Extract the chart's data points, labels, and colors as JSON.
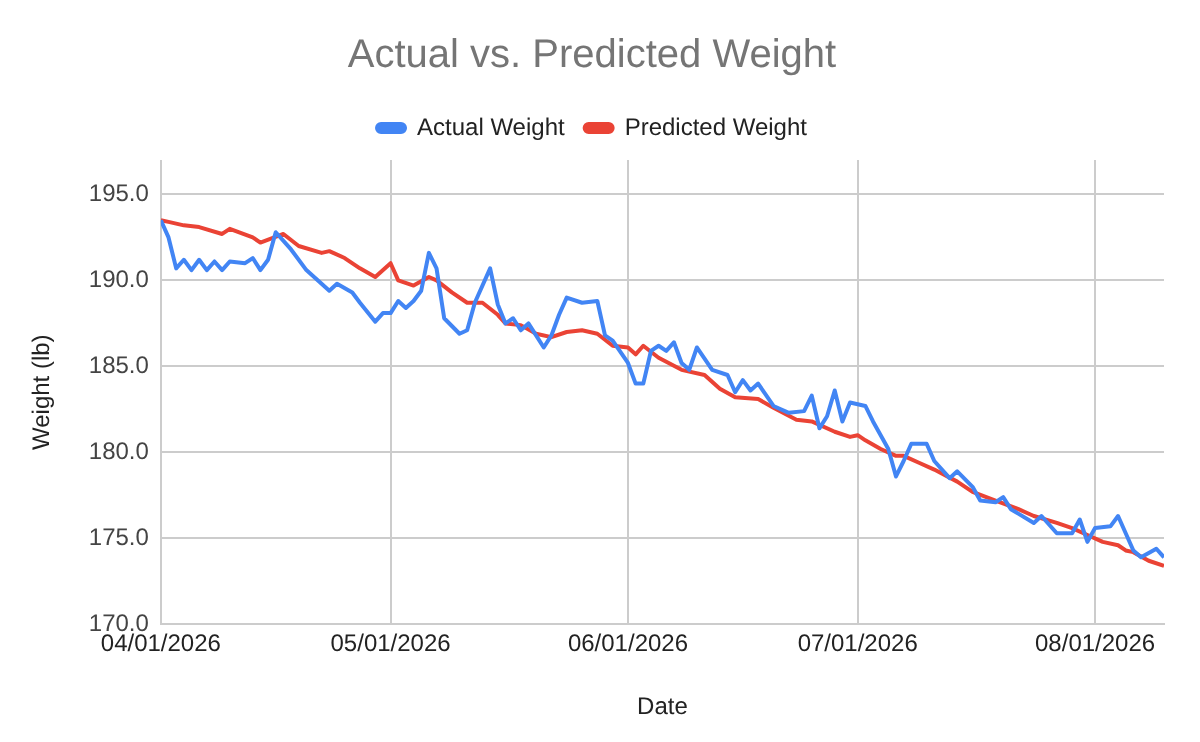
{
  "chart_data": {
    "type": "line",
    "title": "Actual vs. Predicted Weight",
    "xlabel": "Date",
    "ylabel": "Weight (lb)",
    "xlim": [
      "2026-04-01",
      "2026-08-10"
    ],
    "ylim": [
      170,
      197
    ],
    "xticks": [
      {
        "value": "2026-04-01",
        "label": "04/01/2026"
      },
      {
        "value": "2026-05-01",
        "label": "05/01/2026"
      },
      {
        "value": "2026-06-01",
        "label": "06/01/2026"
      },
      {
        "value": "2026-07-01",
        "label": "07/01/2026"
      },
      {
        "value": "2026-08-01",
        "label": "08/01/2026"
      }
    ],
    "yticks": [
      {
        "value": 170,
        "label": "170.0"
      },
      {
        "value": 175,
        "label": "175.0"
      },
      {
        "value": 180,
        "label": "180.0"
      },
      {
        "value": 185,
        "label": "185.0"
      },
      {
        "value": 190,
        "label": "190.0"
      },
      {
        "value": 195,
        "label": "195.0"
      }
    ],
    "grid": true,
    "legend": "top",
    "marker": "none",
    "line_style": "solid",
    "series": [
      {
        "name": "Actual Weight",
        "color": "#4285f4",
        "x": [
          "2026-04-01",
          "2026-04-02",
          "2026-04-03",
          "2026-04-04",
          "2026-04-05",
          "2026-04-06",
          "2026-04-07",
          "2026-04-08",
          "2026-04-09",
          "2026-04-10",
          "2026-04-12",
          "2026-04-13",
          "2026-04-14",
          "2026-04-15",
          "2026-04-16",
          "2026-04-18",
          "2026-04-20",
          "2026-04-23",
          "2026-04-24",
          "2026-04-26",
          "2026-04-27",
          "2026-04-29",
          "2026-04-30",
          "2026-05-01",
          "2026-05-02",
          "2026-05-03",
          "2026-05-04",
          "2026-05-05",
          "2026-05-06",
          "2026-05-07",
          "2026-05-08",
          "2026-05-10",
          "2026-05-11",
          "2026-05-12",
          "2026-05-14",
          "2026-05-15",
          "2026-05-16",
          "2026-05-17",
          "2026-05-18",
          "2026-05-19",
          "2026-05-20",
          "2026-05-21",
          "2026-05-22",
          "2026-05-23",
          "2026-05-24",
          "2026-05-26",
          "2026-05-28",
          "2026-05-29",
          "2026-05-30",
          "2026-06-01",
          "2026-06-02",
          "2026-06-03",
          "2026-06-04",
          "2026-06-05",
          "2026-06-06",
          "2026-06-07",
          "2026-06-08",
          "2026-06-09",
          "2026-06-10",
          "2026-06-12",
          "2026-06-14",
          "2026-06-15",
          "2026-06-16",
          "2026-06-17",
          "2026-06-18",
          "2026-06-20",
          "2026-06-22",
          "2026-06-24",
          "2026-06-25",
          "2026-06-26",
          "2026-06-27",
          "2026-06-28",
          "2026-06-29",
          "2026-06-30",
          "2026-07-02",
          "2026-07-03",
          "2026-07-05",
          "2026-07-06",
          "2026-07-07",
          "2026-07-08",
          "2026-07-10",
          "2026-07-11",
          "2026-07-13",
          "2026-07-14",
          "2026-07-16",
          "2026-07-17",
          "2026-07-19",
          "2026-07-20",
          "2026-07-21",
          "2026-07-24",
          "2026-07-25",
          "2026-07-27",
          "2026-07-29",
          "2026-07-30",
          "2026-07-31",
          "2026-08-01",
          "2026-08-03",
          "2026-08-04",
          "2026-08-06",
          "2026-08-07",
          "2026-08-09",
          "2026-08-10"
        ],
        "values": [
          193.5,
          192.5,
          190.7,
          191.2,
          190.6,
          191.2,
          190.6,
          191.1,
          190.6,
          191.1,
          191.0,
          191.3,
          190.6,
          191.2,
          192.8,
          191.8,
          190.6,
          189.4,
          189.8,
          189.3,
          188.7,
          187.6,
          188.1,
          188.1,
          188.8,
          188.4,
          188.8,
          189.4,
          191.6,
          190.7,
          187.8,
          186.9,
          187.1,
          188.7,
          190.7,
          188.6,
          187.5,
          187.8,
          187.1,
          187.5,
          186.8,
          186.1,
          186.8,
          188.0,
          189.0,
          188.7,
          188.8,
          186.8,
          186.5,
          185.2,
          184.0,
          184.0,
          185.9,
          186.2,
          185.9,
          186.4,
          185.2,
          184.8,
          186.1,
          184.8,
          184.5,
          183.5,
          184.2,
          183.6,
          184.0,
          182.7,
          182.3,
          182.4,
          183.3,
          181.4,
          182.1,
          183.6,
          181.8,
          182.9,
          182.7,
          181.8,
          180.2,
          178.6,
          179.5,
          180.5,
          180.5,
          179.5,
          178.5,
          178.9,
          178.0,
          177.2,
          177.1,
          177.4,
          176.7,
          175.9,
          176.3,
          175.3,
          175.3,
          176.1,
          174.8,
          175.6,
          175.7,
          176.3,
          174.3,
          173.9,
          174.4,
          173.9
        ]
      },
      {
        "name": "Predicted Weight",
        "color": "#ea4335",
        "x": [
          "2026-04-01",
          "2026-04-02",
          "2026-04-04",
          "2026-04-06",
          "2026-04-09",
          "2026-04-10",
          "2026-04-13",
          "2026-04-14",
          "2026-04-17",
          "2026-04-19",
          "2026-04-22",
          "2026-04-23",
          "2026-04-25",
          "2026-04-27",
          "2026-04-29",
          "2026-05-01",
          "2026-05-02",
          "2026-05-04",
          "2026-05-06",
          "2026-05-07",
          "2026-05-09",
          "2026-05-11",
          "2026-05-13",
          "2026-05-15",
          "2026-05-16",
          "2026-05-18",
          "2026-05-20",
          "2026-05-22",
          "2026-05-24",
          "2026-05-26",
          "2026-05-28",
          "2026-05-30",
          "2026-06-01",
          "2026-06-02",
          "2026-06-03",
          "2026-06-05",
          "2026-06-08",
          "2026-06-11",
          "2026-06-13",
          "2026-06-15",
          "2026-06-18",
          "2026-06-20",
          "2026-06-23",
          "2026-06-25",
          "2026-06-28",
          "2026-06-30",
          "2026-07-01",
          "2026-07-02",
          "2026-07-04",
          "2026-07-06",
          "2026-07-07",
          "2026-07-09",
          "2026-07-11",
          "2026-07-14",
          "2026-07-16",
          "2026-07-19",
          "2026-07-22",
          "2026-07-24",
          "2026-07-27",
          "2026-07-29",
          "2026-07-31",
          "2026-08-02",
          "2026-08-04",
          "2026-08-05",
          "2026-08-06",
          "2026-08-08",
          "2026-08-10"
        ],
        "values": [
          193.5,
          193.4,
          193.2,
          193.1,
          192.7,
          193.0,
          192.5,
          192.2,
          192.7,
          192.0,
          191.6,
          191.7,
          191.3,
          190.7,
          190.2,
          191.0,
          190.0,
          189.7,
          190.2,
          190.0,
          189.3,
          188.7,
          188.7,
          188.0,
          187.5,
          187.4,
          186.9,
          186.7,
          187.0,
          187.1,
          186.9,
          186.2,
          186.1,
          185.7,
          186.2,
          185.5,
          184.8,
          184.5,
          183.7,
          183.2,
          183.1,
          182.6,
          181.9,
          181.8,
          181.2,
          180.9,
          181.0,
          180.7,
          180.2,
          179.8,
          179.8,
          179.4,
          179.0,
          178.3,
          177.7,
          177.2,
          176.7,
          176.3,
          175.9,
          175.6,
          175.2,
          174.8,
          174.6,
          174.3,
          174.2,
          173.7,
          173.4
        ]
      }
    ]
  }
}
